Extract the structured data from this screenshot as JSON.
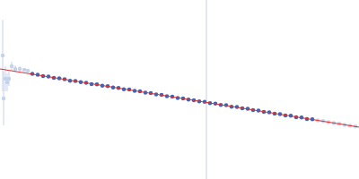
{
  "chart_data": {
    "type": "scatter",
    "xlim": [
      0,
      400
    ],
    "ylim": [
      0,
      200
    ],
    "tick_labels": false,
    "grid": false,
    "series": [
      {
        "type": "line",
        "color": "#d0d8e8",
        "x": [
          230,
          230
        ],
        "values": [
          0,
          200
        ]
      },
      {
        "type": "scatter",
        "color": "#c5d3ea",
        "marker": "circle",
        "x": [
          3,
          4,
          6,
          8,
          10,
          13,
          17,
          22,
          27,
          31
        ],
        "values": [
          138,
          90,
          112,
          108,
          112,
          126,
          123,
          123,
          122,
          121
        ],
        "error": [
          40,
          30,
          14,
          10,
          8,
          5,
          4,
          3,
          2,
          2
        ]
      },
      {
        "type": "scatter",
        "color": "#3a66b5",
        "marker": "circle",
        "x": [
          36,
          42,
          48,
          54,
          60,
          66,
          72,
          78,
          84,
          90,
          96,
          102,
          108,
          114,
          120,
          126,
          132,
          138,
          144,
          150,
          156,
          162,
          168,
          174,
          180,
          186,
          192,
          198,
          204,
          210,
          216,
          222,
          228,
          234,
          240,
          246,
          252,
          258,
          264,
          270,
          276,
          282,
          288,
          294,
          300,
          306,
          312,
          318,
          324,
          330,
          336,
          342,
          348
        ],
        "values": [
          117.5,
          116.4,
          115.0,
          114.5,
          113.0,
          112.6,
          111.5,
          109.8,
          109.6,
          108.2,
          107.6,
          106.1,
          105.7,
          104.3,
          103.8,
          102.2,
          101.8,
          100.3,
          99.9,
          98.4,
          97.9,
          96.5,
          95.9,
          94.4,
          94.0,
          92.6,
          92.1,
          90.6,
          90.1,
          88.7,
          88.1,
          86.7,
          86.2,
          84.8,
          84.3,
          82.7,
          82.4,
          80.8,
          80.4,
          78.9,
          78.5,
          76.9,
          76.5,
          74.9,
          74.6,
          73.0,
          72.6,
          71.0,
          70.7,
          69.1,
          68.8,
          67.1,
          66.8
        ]
      },
      {
        "type": "scatter",
        "color": "#c5d3ea",
        "marker": "circle",
        "x": [
          354,
          360,
          366,
          372,
          378,
          384,
          390,
          396
        ],
        "values": [
          65.5,
          64.8,
          63.6,
          62.5,
          61.8,
          60.6,
          59.5,
          58.8
        ]
      },
      {
        "type": "line",
        "color": "#e0302f",
        "x": [
          0,
          400
        ],
        "values": [
          123,
          58
        ]
      }
    ]
  }
}
